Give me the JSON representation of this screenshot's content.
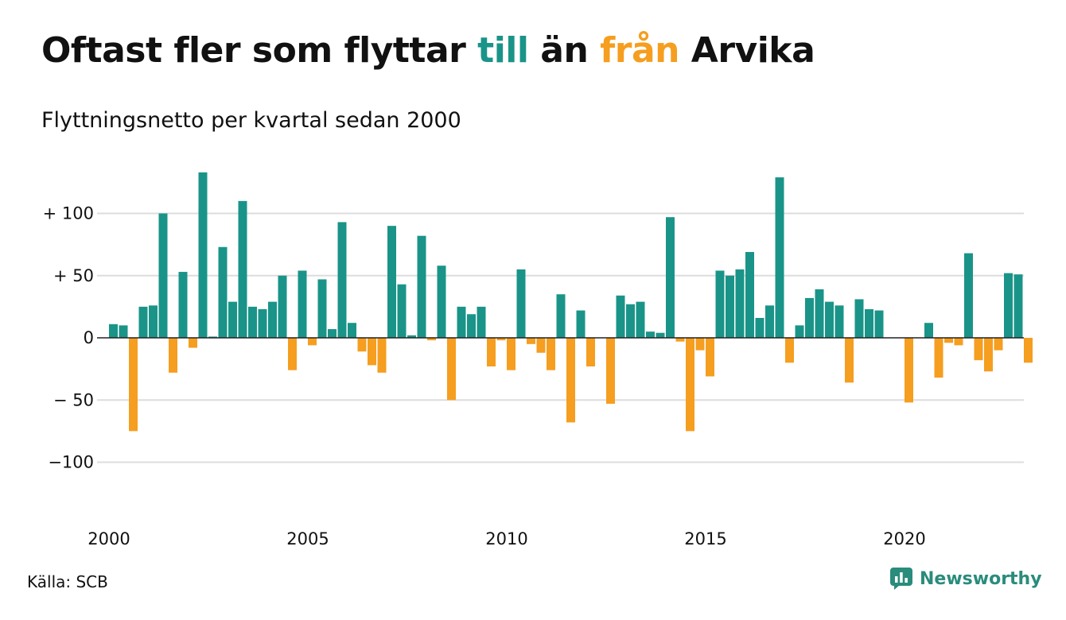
{
  "title": {
    "part1": "Oftast fler som flyttar ",
    "part2": "till",
    "part3": " än ",
    "part4": "från",
    "part5": " Arvika"
  },
  "subtitle": "Flyttningsnetto per kvartal sedan 2000",
  "source": "Källa: SCB",
  "brand": "Newsworthy",
  "colors": {
    "positive": "#1a9488",
    "negative": "#f59e1f",
    "grid": "#dddddd",
    "brand": "#2a8c7c"
  },
  "chart_data": {
    "type": "bar",
    "title": "Oftast fler som flyttar till än från Arvika",
    "subtitle": "Flyttningsnetto per kvartal sedan 2000",
    "ylim": [
      -140,
      135
    ],
    "y_ticks": [
      100,
      50,
      0,
      -50,
      -100
    ],
    "y_tick_labels": [
      "+ 100",
      "+  50",
      "0",
      "− 50",
      "−100"
    ],
    "x_ticks": [
      "2000",
      "2005",
      "2010",
      "2015",
      "2020"
    ],
    "start": "2000 Q1",
    "grid": true,
    "values": [
      11,
      10,
      -75,
      25,
      26,
      100,
      -28,
      53,
      -8,
      133,
      1,
      73,
      29,
      110,
      25,
      23,
      29,
      50,
      -26,
      54,
      -6,
      47,
      7,
      93,
      12,
      -11,
      -22,
      -28,
      90,
      43,
      2,
      82,
      -2,
      58,
      -50,
      25,
      19,
      25,
      -23,
      -2,
      -26,
      55,
      -5,
      -12,
      -26,
      35,
      -68,
      22,
      -23,
      0,
      -53,
      34,
      27,
      29,
      5,
      4,
      97,
      -3,
      -75,
      -10,
      -31,
      54,
      50,
      55,
      69,
      16,
      26,
      129,
      -20,
      10,
      32,
      39,
      29,
      26,
      -36,
      31,
      23,
      22,
      0,
      0,
      -52,
      0,
      12,
      -32,
      -4,
      -6,
      68,
      -18,
      -27,
      -10,
      52,
      51,
      -20
    ]
  }
}
